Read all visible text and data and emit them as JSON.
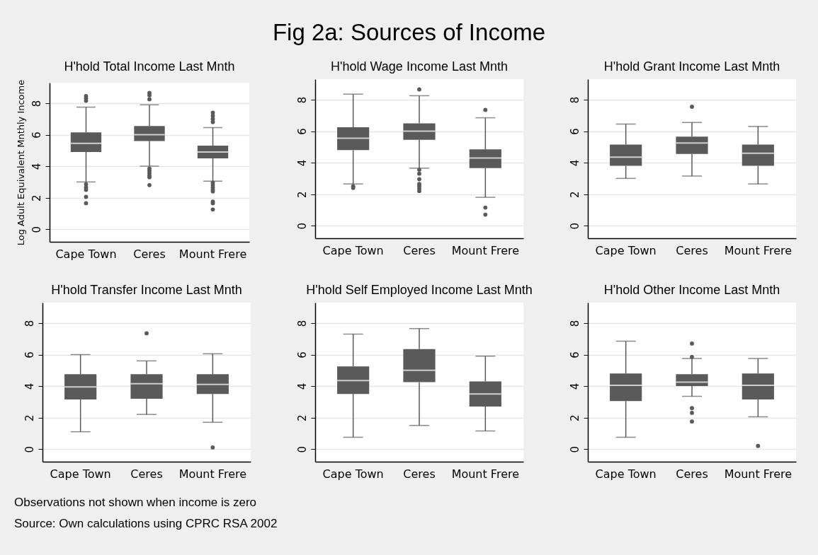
{
  "chart_data": [
    {
      "type": "other",
      "title": "Fig 2a: Sources of Income"
    },
    {
      "type": "box",
      "title": "H'hold Total Income Last Mnth",
      "ylabel": "Log Adult Equivalent Mnthly Income",
      "categories": [
        "Cape Town",
        "Ceres",
        "Mount Frere"
      ],
      "ylim": [
        -0.8,
        9.3
      ],
      "yticks": [
        0,
        2,
        4,
        6,
        8
      ],
      "grid": "y",
      "series": [
        {
          "color": "#5a5a5a",
          "boxes": [
            {
              "low": 3.0,
              "q1": 4.9,
              "median": 5.45,
              "q3": 6.15,
              "high": 7.75,
              "outliers": [
                8.45,
                8.3,
                8.15,
                2.85,
                2.65,
                2.5,
                2.05,
                1.65
              ]
            },
            {
              "low": 4.0,
              "q1": 5.6,
              "median": 6.0,
              "q3": 6.55,
              "high": 7.9,
              "outliers": [
                8.65,
                8.5,
                8.25,
                3.85,
                3.7,
                3.55,
                3.4,
                3.3,
                2.8
              ]
            },
            {
              "low": 3.05,
              "q1": 4.5,
              "median": 4.9,
              "q3": 5.3,
              "high": 6.45,
              "outliers": [
                7.4,
                7.2,
                7.0,
                6.8,
                2.95,
                2.8,
                2.65,
                2.5,
                2.4,
                1.75,
                1.65,
                1.25
              ]
            }
          ]
        }
      ]
    },
    {
      "type": "box",
      "title": "H'hold Wage Income Last Mnth",
      "categories": [
        "Cape Town",
        "Ceres",
        "Mount Frere"
      ],
      "ylim": [
        -0.8,
        9.3
      ],
      "yticks": [
        0,
        2,
        4,
        6,
        8
      ],
      "grid": "y",
      "series": [
        {
          "color": "#5a5a5a",
          "boxes": [
            {
              "low": 2.65,
              "q1": 4.8,
              "median": 5.55,
              "q3": 6.25,
              "high": 8.35,
              "outliers": [
                2.5,
                2.4
              ]
            },
            {
              "low": 3.65,
              "q1": 5.45,
              "median": 6.0,
              "q3": 6.5,
              "high": 8.25,
              "outliers": [
                8.65,
                3.55,
                3.3,
                2.95,
                2.65,
                2.5,
                2.35,
                2.2
              ]
            },
            {
              "low": 1.8,
              "q1": 3.65,
              "median": 4.3,
              "q3": 4.85,
              "high": 6.85,
              "outliers": [
                7.35,
                1.15,
                0.7
              ]
            }
          ]
        }
      ]
    },
    {
      "type": "box",
      "title": "H'hold Grant Income Last Mnth",
      "categories": [
        "Cape Town",
        "Ceres",
        "Mount Frere"
      ],
      "ylim": [
        -0.8,
        9.3
      ],
      "yticks": [
        0,
        2,
        4,
        6,
        8
      ],
      "grid": "y",
      "series": [
        {
          "color": "#5a5a5a",
          "boxes": [
            {
              "low": 3.0,
              "q1": 3.8,
              "median": 4.35,
              "q3": 5.15,
              "high": 6.45
            },
            {
              "low": 3.15,
              "q1": 4.55,
              "median": 5.25,
              "q3": 5.65,
              "high": 6.55,
              "outliers": [
                7.55
              ]
            },
            {
              "low": 2.65,
              "q1": 3.8,
              "median": 4.6,
              "q3": 5.15,
              "high": 6.3
            }
          ]
        }
      ]
    },
    {
      "type": "box",
      "title": "H'hold Transfer Income Last Mnth",
      "categories": [
        "Cape Town",
        "Ceres",
        "Mount Frere"
      ],
      "ylim": [
        -0.8,
        9.3
      ],
      "yticks": [
        0,
        2,
        4,
        6,
        8
      ],
      "grid": "y",
      "series": [
        {
          "color": "#5a5a5a",
          "boxes": [
            {
              "low": 1.1,
              "q1": 3.15,
              "median": 3.95,
              "q3": 4.75,
              "high": 6.0
            },
            {
              "low": 2.2,
              "q1": 3.2,
              "median": 4.15,
              "q3": 4.75,
              "high": 5.6,
              "outliers": [
                7.35
              ]
            },
            {
              "low": 1.7,
              "q1": 3.5,
              "median": 4.1,
              "q3": 4.75,
              "high": 6.05,
              "outliers": [
                0.1
              ]
            }
          ]
        }
      ]
    },
    {
      "type": "box",
      "title": "H'hold Self Employed Income Last Mnth",
      "categories": [
        "Cape Town",
        "Ceres",
        "Mount Frere"
      ],
      "ylim": [
        -0.8,
        9.3
      ],
      "yticks": [
        0,
        2,
        4,
        6,
        8
      ],
      "grid": "y",
      "series": [
        {
          "color": "#5a5a5a",
          "boxes": [
            {
              "low": 0.75,
              "q1": 3.5,
              "median": 4.35,
              "q3": 5.25,
              "high": 7.3
            },
            {
              "low": 1.5,
              "q1": 4.25,
              "median": 5.0,
              "q3": 6.35,
              "high": 7.65
            },
            {
              "low": 1.15,
              "q1": 2.7,
              "median": 3.5,
              "q3": 4.3,
              "high": 5.9
            }
          ]
        }
      ]
    },
    {
      "type": "box",
      "title": "H'hold Other Income Last Mnth",
      "categories": [
        "Cape Town",
        "Ceres",
        "Mount Frere"
      ],
      "ylim": [
        -0.8,
        9.3
      ],
      "yticks": [
        0,
        2,
        4,
        6,
        8
      ],
      "grid": "y",
      "series": [
        {
          "color": "#5a5a5a",
          "boxes": [
            {
              "low": 0.75,
              "q1": 3.05,
              "median": 4.05,
              "q3": 4.8,
              "high": 6.85
            },
            {
              "low": 3.35,
              "q1": 4.0,
              "median": 4.25,
              "q3": 4.75,
              "high": 5.75,
              "outliers": [
                6.7,
                5.85,
                2.6,
                2.3,
                1.75
              ]
            },
            {
              "low": 2.05,
              "q1": 3.15,
              "median": 4.05,
              "q3": 4.8,
              "high": 5.75,
              "outliers": [
                0.2
              ]
            }
          ]
        }
      ]
    },
    {
      "type": "other",
      "annotations": [
        "Observations not shown when income is zero",
        "Source: Own calculations using CPRC RSA 2002"
      ]
    }
  ]
}
